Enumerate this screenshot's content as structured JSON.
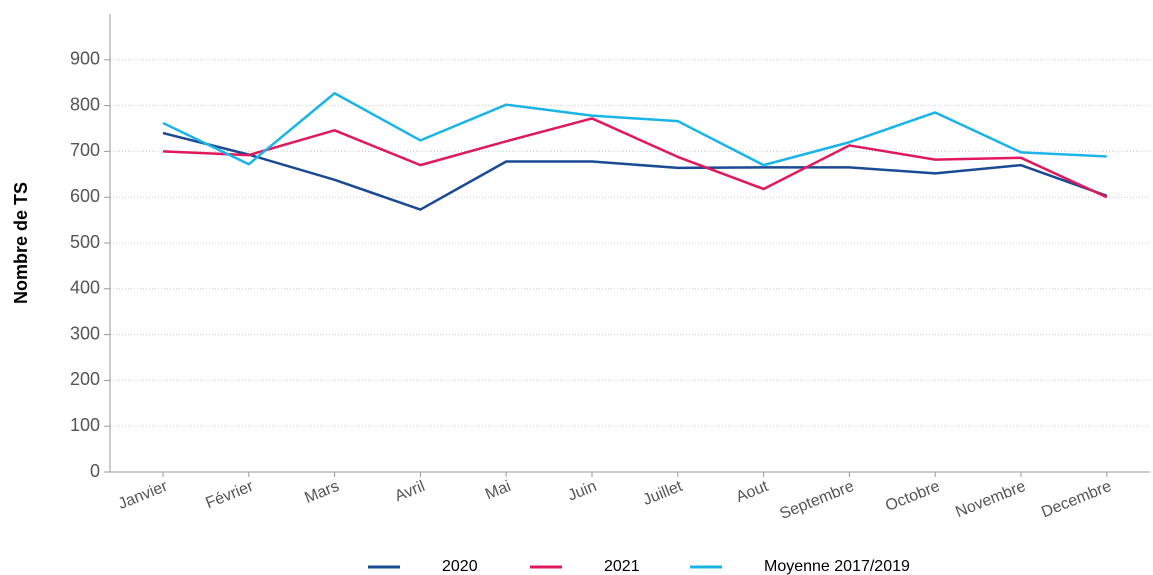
{
  "chart_data": {
    "type": "line",
    "y_label": "Nombre de TS",
    "categories": [
      "Janvier",
      "Février",
      "Mars",
      "Avril",
      "Mai",
      "Juin",
      "Juillet",
      "Aout",
      "Septembre",
      "Octobre",
      "Novembre",
      "Decembre"
    ],
    "series": [
      {
        "name": "2020",
        "color": "#1a4a93",
        "values": [
          740,
          693,
          638,
          573,
          678,
          678,
          664,
          665,
          665,
          652,
          670,
          603
        ]
      },
      {
        "name": "2021",
        "color": "#e0195e",
        "values": [
          700,
          692,
          746,
          670,
          722,
          772,
          688,
          618,
          713,
          682,
          686,
          600
        ]
      },
      {
        "name": "Moyenne 2017/2019",
        "color": "#1ab4e8",
        "values": [
          762,
          672,
          827,
          724,
          802,
          778,
          766,
          670,
          720,
          785,
          698,
          689
        ]
      }
    ],
    "ylim": [
      0,
      1000
    ],
    "yticks": [
      0,
      100,
      200,
      300,
      400,
      500,
      600,
      700,
      800,
      900
    ],
    "grid": true,
    "legend": "bottom"
  }
}
